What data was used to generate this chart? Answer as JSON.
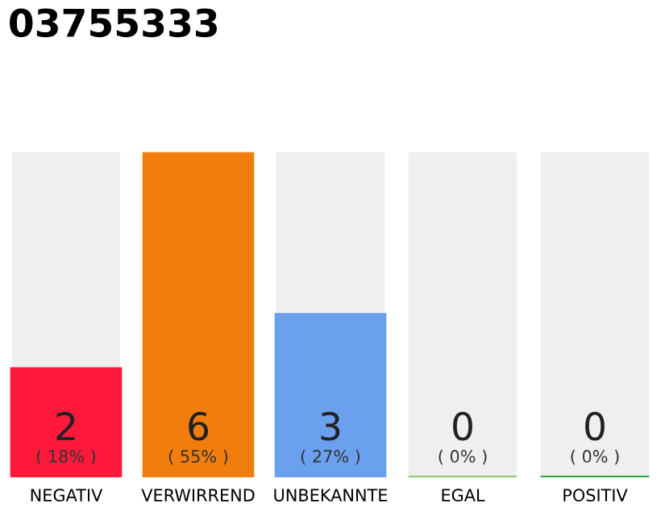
{
  "chart_data": {
    "type": "bar",
    "title": "03755333",
    "categories": [
      "NEGATIV",
      "VERWIRREND",
      "UNBEKANNTE",
      "EGAL",
      "POSITIV"
    ],
    "values": [
      2,
      6,
      3,
      0,
      0
    ],
    "colors": [
      "#ff1a3c",
      "#f07d0c",
      "#6aa0ee",
      "#8bc865",
      "#27a844"
    ],
    "data_labels": true,
    "annotations": [
      "( 18% )",
      "( 55% )",
      "( 27% )",
      "( 0% )",
      "( 0% )"
    ],
    "grid": false,
    "legend": false
  }
}
